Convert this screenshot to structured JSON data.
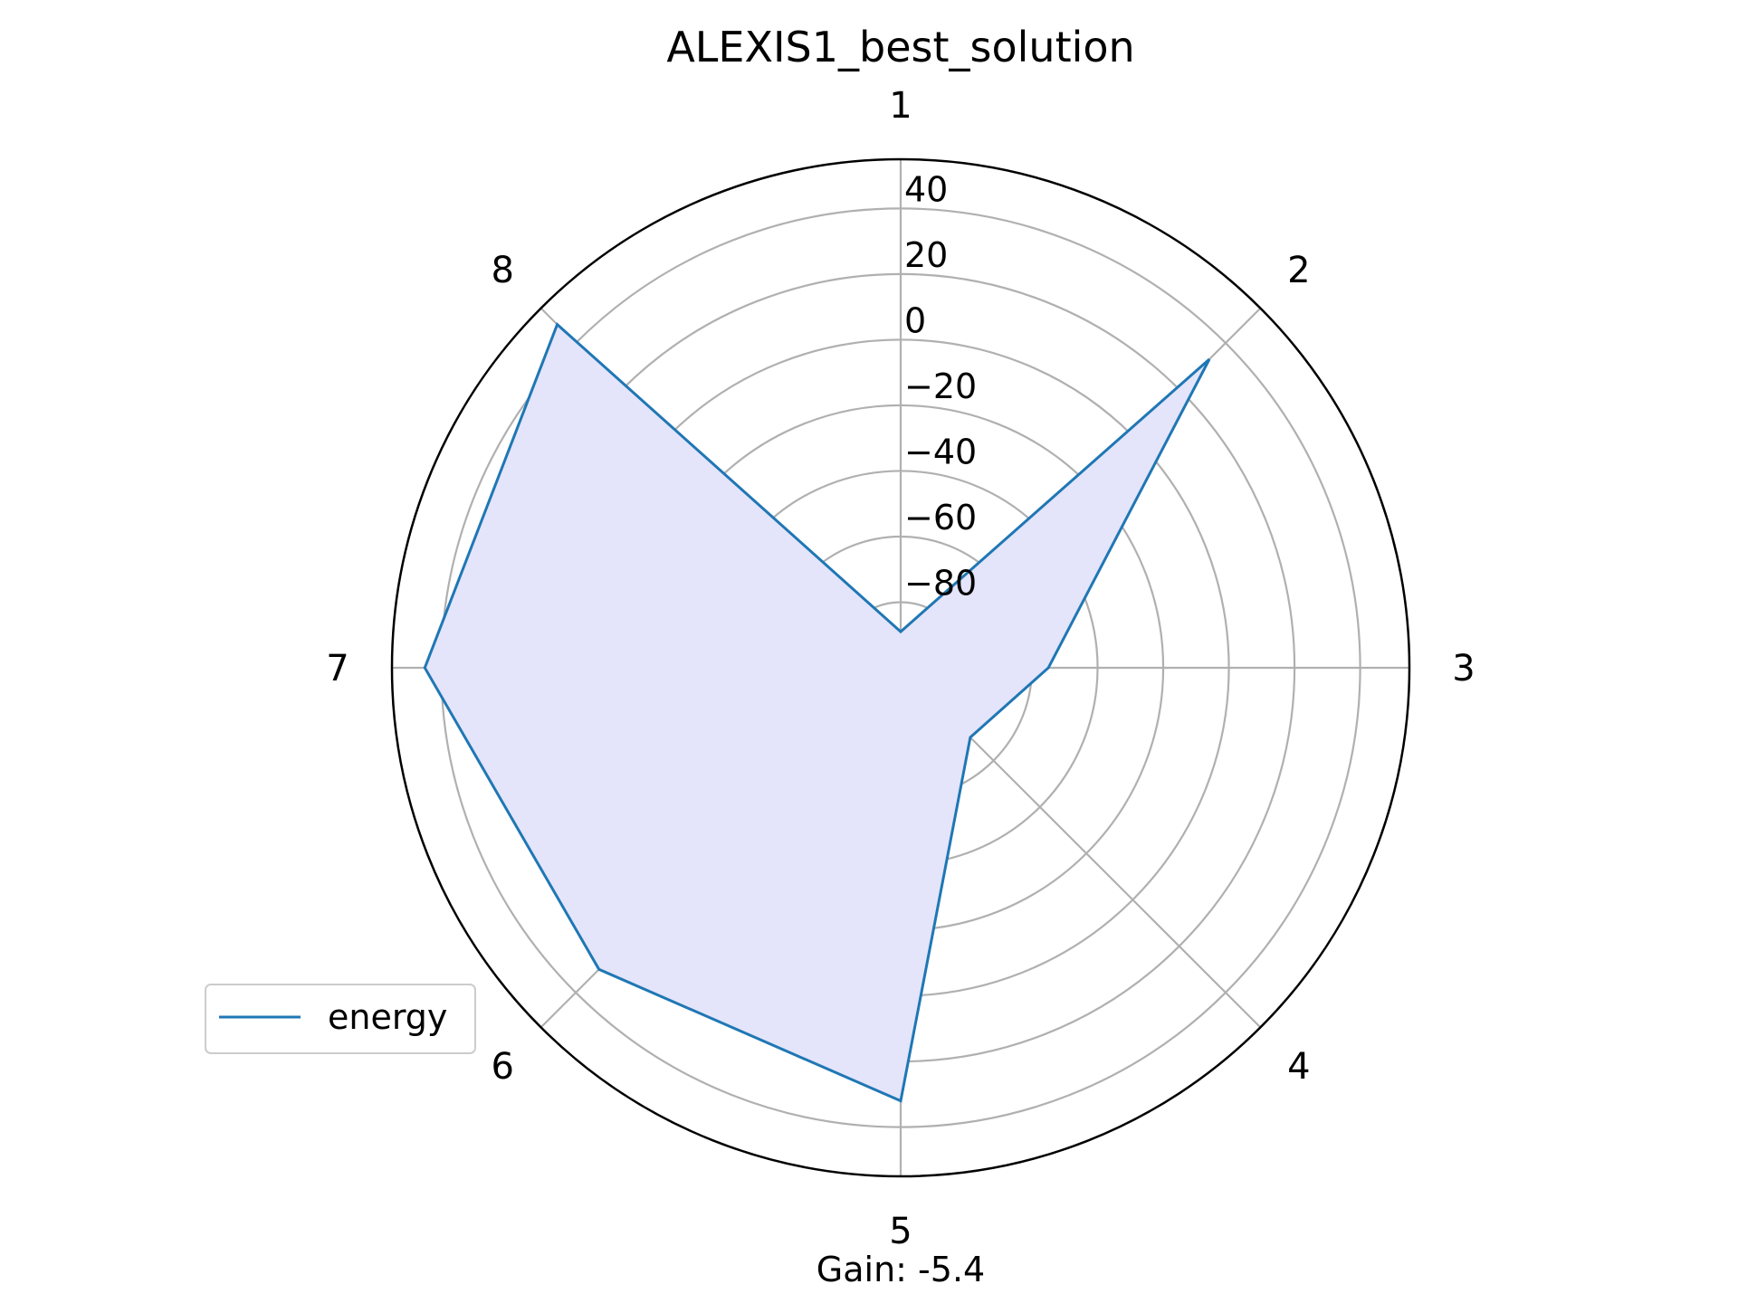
{
  "chart_data": {
    "type": "radar",
    "title": "ALEXIS1_best_solution",
    "categories": [
      "1",
      "2",
      "3",
      "4",
      "5",
      "6",
      "7",
      "8"
    ],
    "series": [
      {
        "name": "energy",
        "values": [
          -89,
          33,
          -55,
          -70,
          32,
          30,
          45,
          48
        ],
        "color": "#1f77b4",
        "fill": "#e4e4fa"
      }
    ],
    "rlim": [
      -100,
      55
    ],
    "rticks": [
      -80,
      -60,
      -40,
      -20,
      0,
      20,
      40
    ],
    "rtick_labels": [
      "−80",
      "−60",
      "−40",
      "−20",
      "0",
      "20",
      "40"
    ],
    "grid": true,
    "legend": {
      "position": "lower-left",
      "entries": [
        "energy"
      ]
    },
    "footer": "Gain: -5.4"
  },
  "colors": {
    "grid": "#b0b0b0",
    "frame": "#000000"
  }
}
